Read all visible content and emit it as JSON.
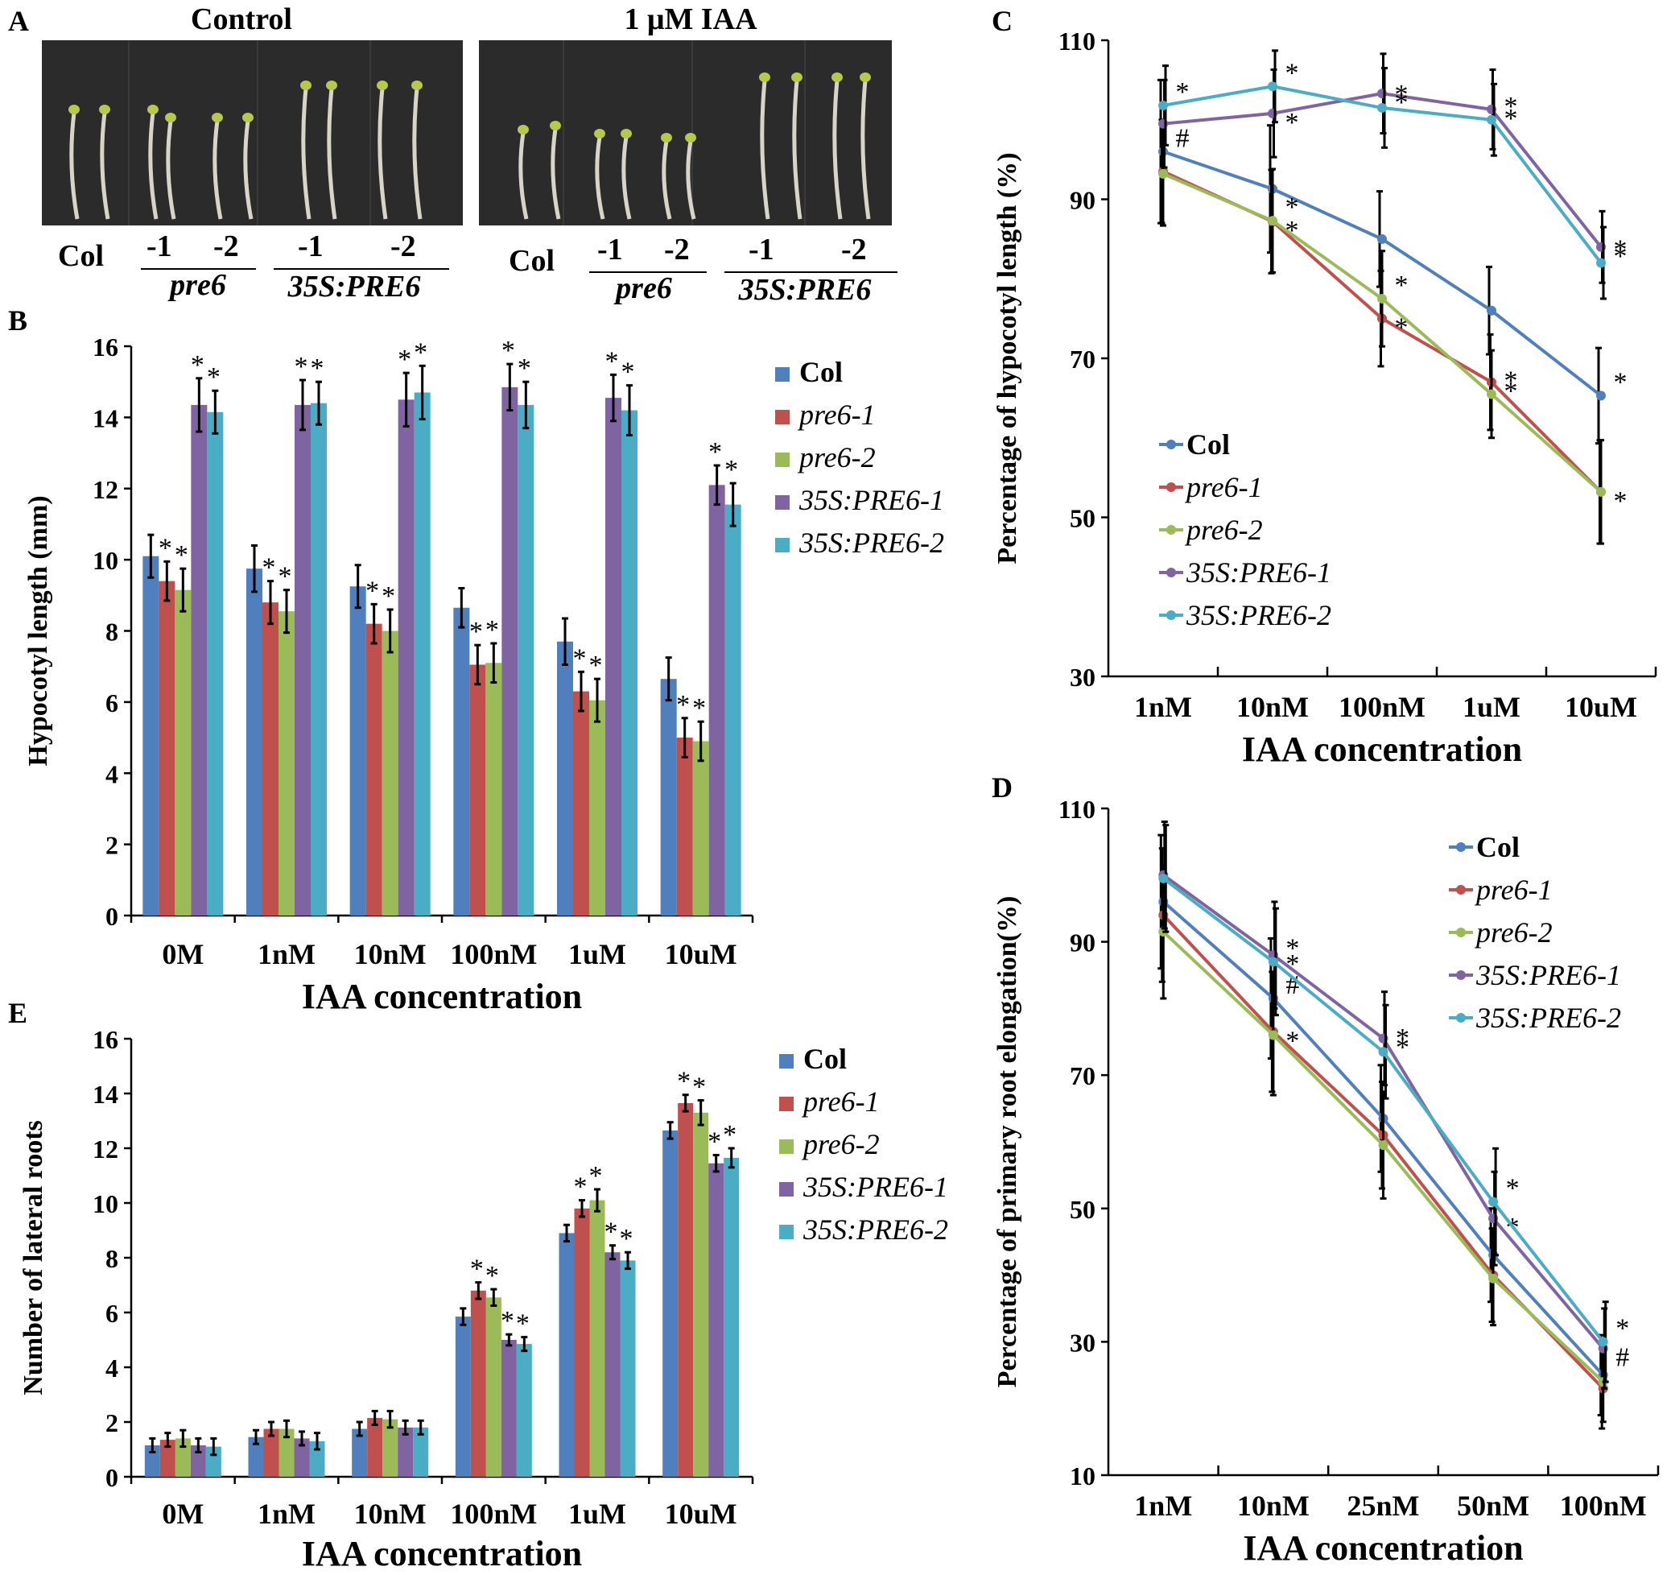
{
  "colors": {
    "Col": "#4f7fbd",
    "pre6-1": "#c0504d",
    "pre6-2": "#9bbb59",
    "35S:PRE6-1": "#8064a2",
    "35S:PRE6-2": "#4bacc6"
  },
  "panel_letters": [
    "A",
    "B",
    "C",
    "D",
    "E"
  ],
  "photo": {
    "titles": [
      "Control",
      "1 μM IAA"
    ],
    "col_label": "Col",
    "minus1": "-1",
    "minus2": "-2",
    "pre6": "pre6",
    "s35": "35S:PRE6"
  },
  "chart_data": [
    {
      "id": "B",
      "type": "bar",
      "ylabel": "Hypocotyl length (mm)",
      "xlabel": "IAA concentration",
      "ylim": [
        0,
        16
      ],
      "yticks": [
        0,
        2,
        4,
        6,
        8,
        10,
        12,
        14,
        16
      ],
      "categories": [
        "0M",
        "1nM",
        "10nM",
        "100nM",
        "1uM",
        "10uM"
      ],
      "series": [
        {
          "name": "Col",
          "values": [
            10.1,
            9.75,
            9.25,
            8.65,
            7.7,
            6.65
          ],
          "err": [
            0.6,
            0.65,
            0.6,
            0.55,
            0.65,
            0.6
          ],
          "sig": [
            "",
            "",
            "",
            "",
            "",
            ""
          ]
        },
        {
          "name": "pre6-1",
          "values": [
            9.4,
            8.8,
            8.2,
            7.05,
            6.3,
            5.0
          ],
          "err": [
            0.55,
            0.6,
            0.55,
            0.55,
            0.55,
            0.55
          ],
          "sig": [
            "*",
            "*",
            "*",
            "*",
            "*",
            "*"
          ]
        },
        {
          "name": "pre6-2",
          "values": [
            9.15,
            8.55,
            8.0,
            7.1,
            6.05,
            4.9
          ],
          "err": [
            0.6,
            0.6,
            0.6,
            0.55,
            0.6,
            0.55
          ],
          "sig": [
            "*",
            "*",
            "*",
            "*",
            "*",
            "*"
          ]
        },
        {
          "name": "35S:PRE6-1",
          "values": [
            14.35,
            14.35,
            14.5,
            14.85,
            14.55,
            12.1
          ],
          "err": [
            0.75,
            0.7,
            0.75,
            0.65,
            0.65,
            0.55
          ],
          "sig": [
            "*",
            "*",
            "*",
            "*",
            "*",
            "*"
          ]
        },
        {
          "name": "35S:PRE6-2",
          "values": [
            14.15,
            14.4,
            14.7,
            14.35,
            14.2,
            11.55
          ],
          "err": [
            0.6,
            0.6,
            0.75,
            0.65,
            0.7,
            0.6
          ],
          "sig": [
            "*",
            "*",
            "*",
            "*",
            "*",
            "*"
          ]
        }
      ],
      "legend": [
        "Col",
        "pre6-1",
        "pre6-2",
        "35S:PRE6-1",
        "35S:PRE6-2"
      ]
    },
    {
      "id": "C",
      "type": "line",
      "ylabel": "Percentage of  hypocotyl length (%)",
      "xlabel": "IAA concentration",
      "ylim": [
        30,
        110
      ],
      "yticks": [
        30,
        50,
        70,
        90,
        110
      ],
      "categories": [
        "1nM",
        "10nM",
        "100nM",
        "1uM",
        "10uM"
      ],
      "series": [
        {
          "name": "Col",
          "values": [
            96.0,
            91.3,
            85.0,
            76.0,
            65.3
          ],
          "err": [
            9.0,
            8.0,
            6.0,
            5.5,
            6.0
          ],
          "sig": [
            "#",
            "",
            "",
            "",
            "*"
          ]
        },
        {
          "name": "pre6-1",
          "values": [
            93.5,
            87.2,
            75.0,
            67.0,
            53.2
          ],
          "err": [
            6.5,
            6.5,
            6.0,
            6.0,
            6.5
          ],
          "sig": [
            "",
            "*",
            "*",
            "*",
            "*"
          ]
        },
        {
          "name": "pre6-2",
          "values": [
            93.2,
            87.3,
            77.5,
            65.5,
            53.2
          ],
          "err": [
            6.5,
            6.5,
            6.0,
            5.5,
            6.5
          ],
          "sig": [
            "",
            "*",
            "*",
            "*",
            ""
          ]
        },
        {
          "name": "35S:PRE6-1",
          "values": [
            99.5,
            100.8,
            103.3,
            101.3,
            84.0
          ],
          "err": [
            5.5,
            5.5,
            5.0,
            5.0,
            4.5
          ],
          "sig": [
            "",
            "*",
            "*",
            "*",
            "*"
          ]
        },
        {
          "name": "35S:PRE6-2",
          "values": [
            101.8,
            104.2,
            101.5,
            100.0,
            82.0
          ],
          "err": [
            5.0,
            4.5,
            5.0,
            4.5,
            4.5
          ],
          "sig": [
            "*",
            "*",
            "*",
            "*",
            "*"
          ]
        }
      ],
      "legend": [
        "Col",
        "pre6-1",
        "pre6-2",
        "35S:PRE6-1",
        "35S:PRE6-2"
      ]
    },
    {
      "id": "D",
      "type": "line",
      "ylabel": "Percentage of primary root elongation(%)",
      "xlabel": "IAA concentration",
      "ylim": [
        10,
        110
      ],
      "yticks": [
        10,
        30,
        50,
        70,
        90,
        110
      ],
      "categories": [
        "1nM",
        "10nM",
        "25nM",
        "50nM",
        "100nM"
      ],
      "series": [
        {
          "name": "Col",
          "values": [
            96.0,
            81.5,
            63.5,
            43.0,
            25.0
          ],
          "err": [
            10.0,
            9.0,
            8.0,
            7.0,
            6.0
          ],
          "sig": [
            "",
            "#",
            "",
            "",
            ""
          ]
        },
        {
          "name": "pre6-1",
          "values": [
            94.0,
            76.5,
            61.0,
            40.0,
            23.0
          ],
          "err": [
            10.0,
            9.0,
            8.0,
            7.0,
            6.0
          ],
          "sig": [
            "",
            "*",
            "",
            "",
            ""
          ]
        },
        {
          "name": "pre6-2",
          "values": [
            91.5,
            76.0,
            59.5,
            39.5,
            24.0
          ],
          "err": [
            10.0,
            9.0,
            8.0,
            7.0,
            6.0
          ],
          "sig": [
            "",
            "",
            "",
            "",
            ""
          ]
        },
        {
          "name": "35S:PRE6-1",
          "values": [
            100.0,
            88.0,
            75.5,
            48.5,
            29.0
          ],
          "err": [
            8.0,
            8.0,
            7.0,
            7.0,
            6.0
          ],
          "sig": [
            "",
            "*",
            "*",
            "*",
            "#"
          ]
        },
        {
          "name": "35S:PRE6-2",
          "values": [
            99.5,
            87.0,
            73.5,
            51.0,
            30.0
          ],
          "err": [
            8.0,
            8.0,
            7.0,
            8.0,
            6.0
          ],
          "sig": [
            "",
            "*",
            "*",
            "*",
            "*"
          ]
        }
      ],
      "legend": [
        "Col",
        "pre6-1",
        "pre6-2",
        "35S:PRE6-1",
        "35S:PRE6-2"
      ]
    },
    {
      "id": "E",
      "type": "bar",
      "ylabel": "Number of lateral roots",
      "xlabel": "IAA concentration",
      "ylim": [
        0,
        16
      ],
      "yticks": [
        0,
        2,
        4,
        6,
        8,
        10,
        12,
        14,
        16
      ],
      "categories": [
        "0M",
        "1nM",
        "10nM",
        "100nM",
        "1uM",
        "10uM"
      ],
      "series": [
        {
          "name": "Col",
          "values": [
            1.15,
            1.45,
            1.75,
            5.85,
            8.9,
            12.65
          ],
          "err": [
            0.25,
            0.25,
            0.25,
            0.3,
            0.3,
            0.3
          ],
          "sig": [
            "",
            "",
            "",
            "",
            "",
            ""
          ]
        },
        {
          "name": "pre6-1",
          "values": [
            1.35,
            1.75,
            2.15,
            6.8,
            9.8,
            13.65
          ],
          "err": [
            0.25,
            0.25,
            0.25,
            0.3,
            0.3,
            0.3
          ],
          "sig": [
            "",
            "",
            "",
            "*",
            "*",
            "*"
          ]
        },
        {
          "name": "pre6-2",
          "values": [
            1.4,
            1.75,
            2.1,
            6.55,
            10.1,
            13.3
          ],
          "err": [
            0.3,
            0.3,
            0.3,
            0.3,
            0.4,
            0.45
          ],
          "sig": [
            "",
            "",
            "",
            "*",
            "*",
            "*"
          ]
        },
        {
          "name": "35S:PRE6-1",
          "values": [
            1.15,
            1.4,
            1.8,
            5.0,
            8.2,
            11.45
          ],
          "err": [
            0.25,
            0.25,
            0.25,
            0.2,
            0.25,
            0.3
          ],
          "sig": [
            "",
            "",
            "",
            "*",
            "*",
            "*"
          ]
        },
        {
          "name": "35S:PRE6-2",
          "values": [
            1.1,
            1.3,
            1.8,
            4.85,
            7.9,
            11.65
          ],
          "err": [
            0.3,
            0.3,
            0.25,
            0.25,
            0.3,
            0.35
          ],
          "sig": [
            "",
            "",
            "",
            "*",
            "*",
            "*"
          ]
        }
      ],
      "legend": [
        "Col",
        "pre6-1",
        "pre6-2",
        "35S:PRE6-1",
        "35S:PRE6-2"
      ]
    }
  ]
}
